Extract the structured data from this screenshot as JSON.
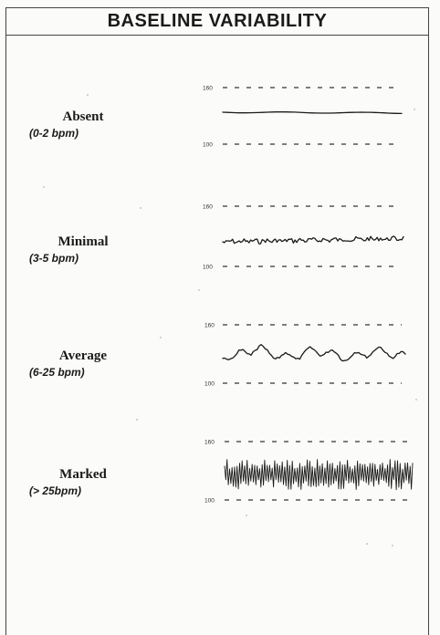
{
  "title": "BASELINE VARIABILITY",
  "panels": [
    {
      "name": "Absent",
      "range": "(0-2 bpm)",
      "upper_tick": "160",
      "lower_tick": "100",
      "amplitude_bpm": 1,
      "style": "flat"
    },
    {
      "name": "Minimal",
      "range": "(3-5 bpm)",
      "upper_tick": "160",
      "lower_tick": "100",
      "amplitude_bpm": 4,
      "style": "small"
    },
    {
      "name": "Average",
      "range": "(6-25 bpm)",
      "upper_tick": "160",
      "lower_tick": "100",
      "amplitude_bpm": 15,
      "style": "wavy"
    },
    {
      "name": "Marked",
      "range": "(> 25bpm)",
      "upper_tick": "160",
      "lower_tick": "100",
      "amplitude_bpm": 30,
      "style": "spiky"
    }
  ],
  "colors": {
    "ink": "#1a1a1a",
    "border": "#444444",
    "paper": "#fbfbf9"
  }
}
